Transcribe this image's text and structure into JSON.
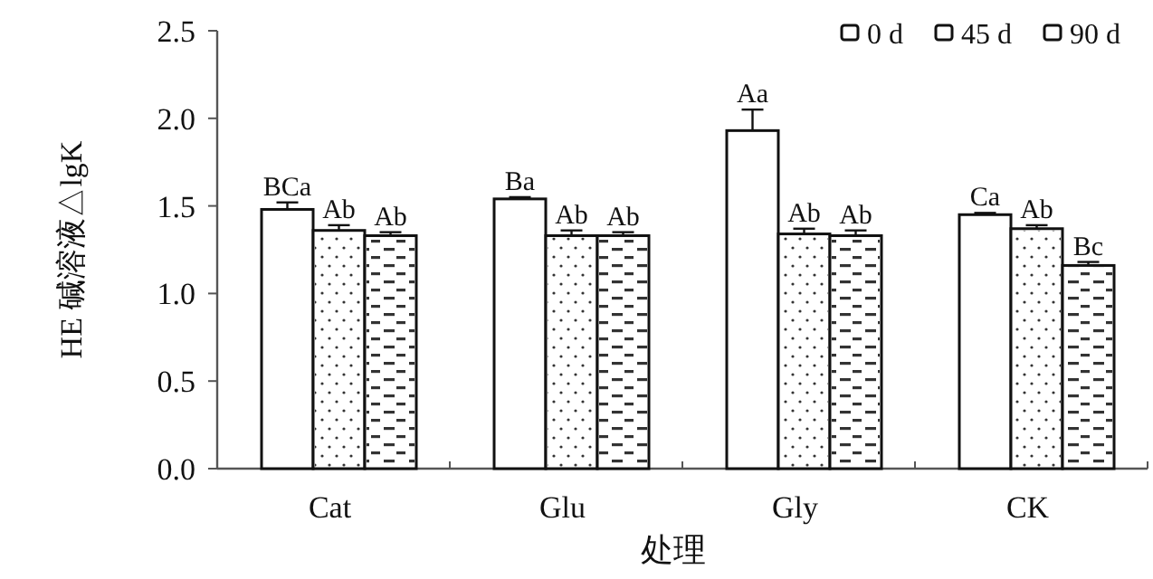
{
  "chart_data": {
    "type": "bar",
    "xlabel": "处理",
    "ylabel": "HE 碱溶液△lgK",
    "categories": [
      "Cat",
      "Glu",
      "Gly",
      "CK"
    ],
    "series": [
      {
        "name": "0 d",
        "color": "#ffffff",
        "values": [
          1.48,
          1.54,
          1.93,
          1.45
        ],
        "errors": [
          0.04,
          0.01,
          0.12,
          0.01
        ],
        "value_labels": [
          "BCa",
          "Ba",
          "Aa",
          "Ca"
        ]
      },
      {
        "name": "45 d",
        "color": "#ffffff",
        "values": [
          1.36,
          1.33,
          1.34,
          1.37
        ],
        "errors": [
          0.03,
          0.03,
          0.03,
          0.02
        ],
        "value_labels": [
          "Ab",
          "Ab",
          "Ab",
          "Ab"
        ]
      },
      {
        "name": "90 d",
        "color": "#ffffff",
        "values": [
          1.33,
          1.33,
          1.33,
          1.16
        ],
        "errors": [
          0.02,
          0.02,
          0.03,
          0.02
        ],
        "value_labels": [
          "Ab",
          "Ab",
          "Ab",
          "Bc"
        ]
      }
    ],
    "ylim": [
      0,
      2.5
    ],
    "yticks": [
      {
        "value": 0,
        "label": "0.0"
      },
      0.5,
      {
        "value": 1,
        "label": "1.0"
      },
      1.5,
      {
        "value": 2,
        "label": "2.0"
      },
      2.5
    ],
    "grid": false,
    "legend": "top right"
  }
}
